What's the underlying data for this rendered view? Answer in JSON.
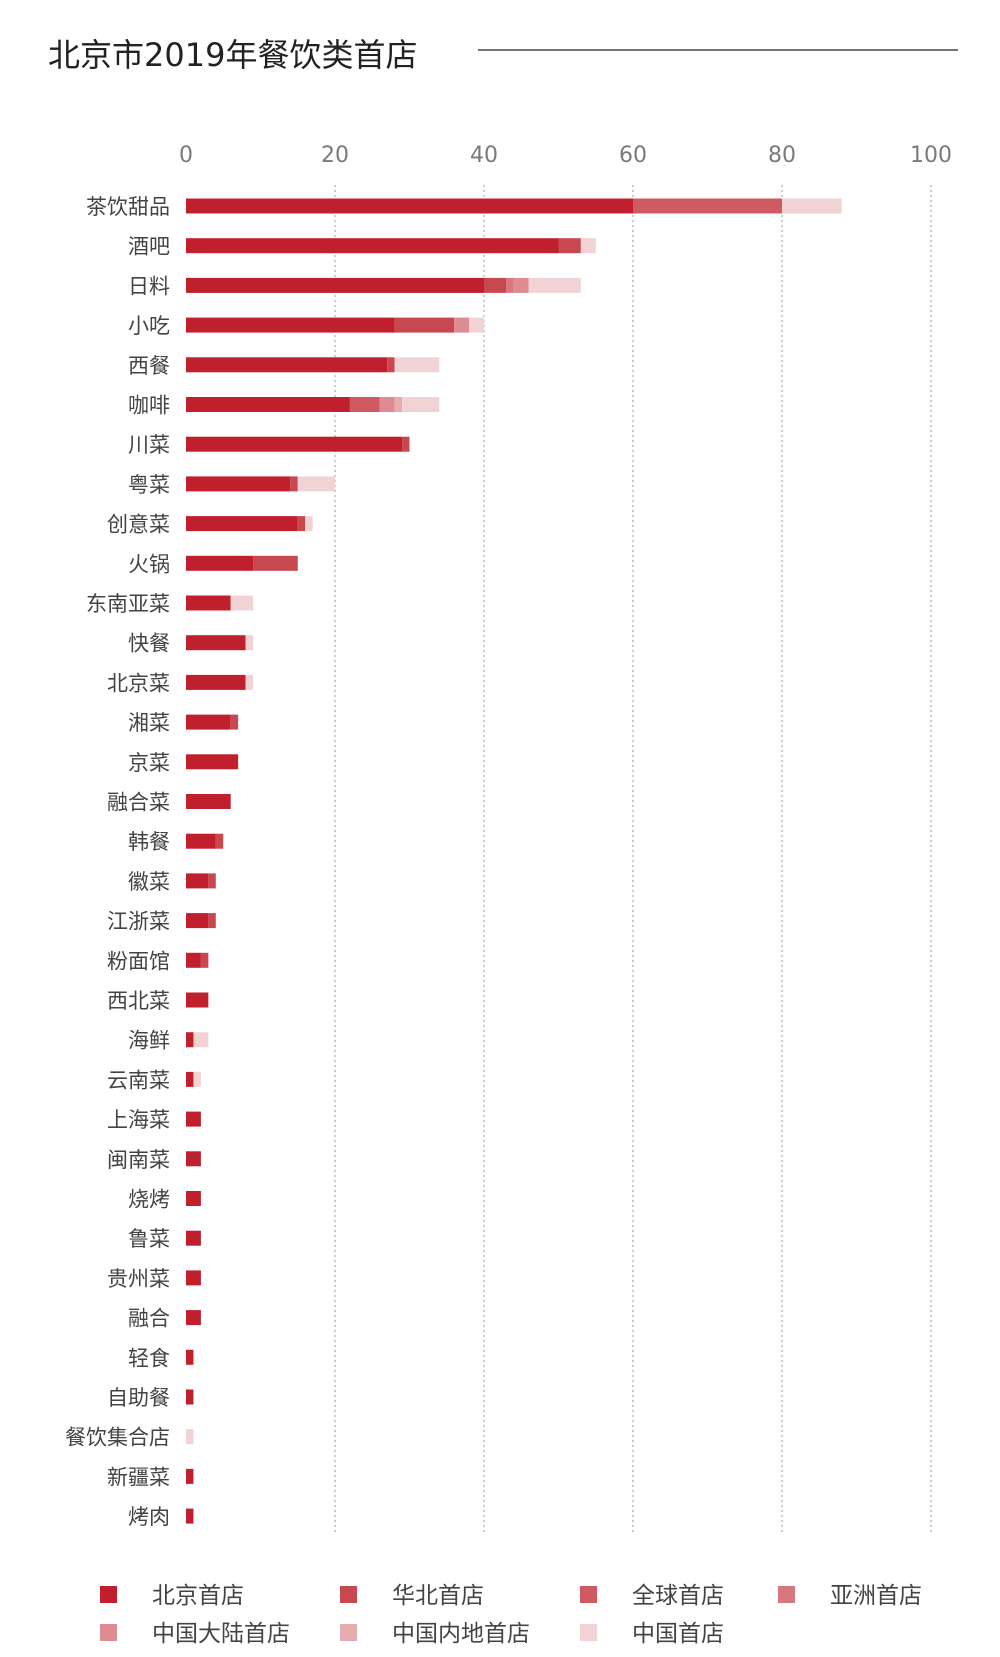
{
  "chart_data": {
    "type": "bar",
    "orientation": "horizontal",
    "stacked": true,
    "title": "北京市2019年餐饮类首店",
    "xlabel": "",
    "ylabel": "",
    "xlim": [
      0,
      100
    ],
    "x_ticks": [
      0,
      20,
      40,
      60,
      80,
      100
    ],
    "grid": true,
    "legend_position": "bottom",
    "categories": [
      "茶饮甜品",
      "酒吧",
      "日料",
      "小吃",
      "西餐",
      "咖啡",
      "川菜",
      "粤菜",
      "创意菜",
      "火锅",
      "东南亚菜",
      "快餐",
      "北京菜",
      "湘菜",
      "京菜",
      "融合菜",
      "韩餐",
      "徽菜",
      "江浙菜",
      "粉面馆",
      "西北菜",
      "海鲜",
      "云南菜",
      "上海菜",
      "闽南菜",
      "烧烤",
      "鲁菜",
      "贵州菜",
      "融合",
      "轻食",
      "自助餐",
      "餐饮集合店",
      "新疆菜",
      "烤肉"
    ],
    "series": [
      {
        "name": "北京首店",
        "color": "#c0202e",
        "values": [
          60,
          50,
          40,
          28,
          27,
          22,
          29,
          14,
          15,
          9,
          6,
          8,
          8,
          6,
          7,
          6,
          4,
          3,
          3,
          2,
          3,
          1,
          1,
          2,
          2,
          2,
          2,
          2,
          2,
          1,
          1,
          0,
          1,
          1
        ]
      },
      {
        "name": "华北首店",
        "color": "#c84850",
        "values": [
          0,
          3,
          3,
          8,
          1,
          0,
          1,
          1,
          1,
          6,
          0,
          0,
          0,
          1,
          0,
          0,
          1,
          1,
          1,
          1,
          0,
          0,
          0,
          0,
          0,
          0,
          0,
          0,
          0,
          0,
          0,
          0,
          0,
          0
        ]
      },
      {
        "name": "全球首店",
        "color": "#cf5a62",
        "values": [
          20,
          0,
          0,
          0,
          0,
          4,
          0,
          0,
          0,
          0,
          0,
          0,
          0,
          0,
          0,
          0,
          0,
          0,
          0,
          0,
          0,
          0,
          0,
          0,
          0,
          0,
          0,
          0,
          0,
          0,
          0,
          0,
          0,
          0
        ]
      },
      {
        "name": "亚洲首店",
        "color": "#d77880",
        "values": [
          0,
          0,
          1,
          0,
          0,
          0,
          0,
          0,
          0,
          0,
          0,
          0,
          0,
          0,
          0,
          0,
          0,
          0,
          0,
          0,
          0,
          0,
          0,
          0,
          0,
          0,
          0,
          0,
          0,
          0,
          0,
          0,
          0,
          0
        ]
      },
      {
        "name": "中国大陆首店",
        "color": "#dd8c92",
        "values": [
          0,
          0,
          2,
          2,
          0,
          2,
          0,
          0,
          0,
          0,
          0,
          0,
          0,
          0,
          0,
          0,
          0,
          0,
          0,
          0,
          0,
          0,
          0,
          0,
          0,
          0,
          0,
          0,
          0,
          0,
          0,
          0,
          0,
          0
        ]
      },
      {
        "name": "中国内地首店",
        "color": "#e6adb1",
        "values": [
          0,
          0,
          0,
          0,
          0,
          1,
          0,
          0,
          0,
          0,
          0,
          0,
          0,
          0,
          0,
          0,
          0,
          0,
          0,
          0,
          0,
          0,
          0,
          0,
          0,
          0,
          0,
          0,
          0,
          0,
          0,
          0,
          0,
          0
        ]
      },
      {
        "name": "中国首店",
        "color": "#f2d3d5",
        "values": [
          8,
          2,
          7,
          2,
          6,
          5,
          0,
          5,
          1,
          0,
          3,
          1,
          1,
          0,
          0,
          0,
          0,
          0,
          0,
          0,
          0,
          2,
          1,
          0,
          0,
          0,
          0,
          0,
          0,
          0,
          0,
          1,
          0,
          0
        ]
      }
    ]
  }
}
